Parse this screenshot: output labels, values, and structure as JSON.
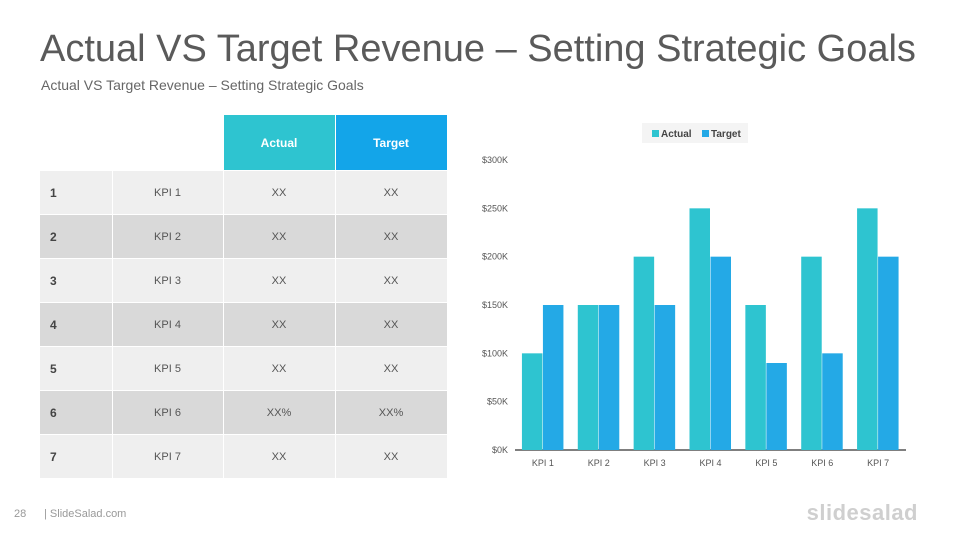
{
  "page": {
    "title": "Actual VS Target Revenue – Setting Strategic Goals",
    "subtitle": "Actual VS Target Revenue – Setting Strategic Goals",
    "page_number": "28",
    "site": "| SlideSalad.com",
    "brand": "slidesalad"
  },
  "colors": {
    "actual": "#2ec4d0",
    "target": "#24a9e6",
    "header_actual": "#2ec4d0",
    "header_target": "#13a5e9"
  },
  "table": {
    "headers": {
      "actual": "Actual",
      "target": "Target"
    },
    "rows": [
      {
        "num": "1",
        "kpi": "KPI 1",
        "actual": "XX",
        "target": "XX"
      },
      {
        "num": "2",
        "kpi": "KPI 2",
        "actual": "XX",
        "target": "XX"
      },
      {
        "num": "3",
        "kpi": "KPI 3",
        "actual": "XX",
        "target": "XX"
      },
      {
        "num": "4",
        "kpi": "KPI 4",
        "actual": "XX",
        "target": "XX"
      },
      {
        "num": "5",
        "kpi": "KPI 5",
        "actual": "XX",
        "target": "XX"
      },
      {
        "num": "6",
        "kpi": "KPI 6",
        "actual": "XX%",
        "target": "XX%"
      },
      {
        "num": "7",
        "kpi": "KPI 7",
        "actual": "XX",
        "target": "XX"
      }
    ]
  },
  "chart_data": {
    "type": "bar",
    "categories": [
      "KPI 1",
      "KPI 2",
      "KPI 3",
      "KPI 4",
      "KPI 5",
      "KPI 6",
      "KPI 7"
    ],
    "series": [
      {
        "name": "Actual",
        "values": [
          100000,
          150000,
          200000,
          250000,
          150000,
          200000,
          250000
        ]
      },
      {
        "name": "Target",
        "values": [
          150000,
          150000,
          150000,
          200000,
          90000,
          100000,
          200000
        ]
      }
    ],
    "ylim": [
      0,
      300000
    ],
    "yticks": [
      0,
      50000,
      100000,
      150000,
      200000,
      250000,
      300000
    ],
    "ytick_labels": [
      "$0K",
      "$50K",
      "$100K",
      "$150K",
      "$200K",
      "$250K",
      "$300K"
    ],
    "legend": "top-center",
    "grid": false,
    "title": "",
    "xlabel": "",
    "ylabel": ""
  }
}
